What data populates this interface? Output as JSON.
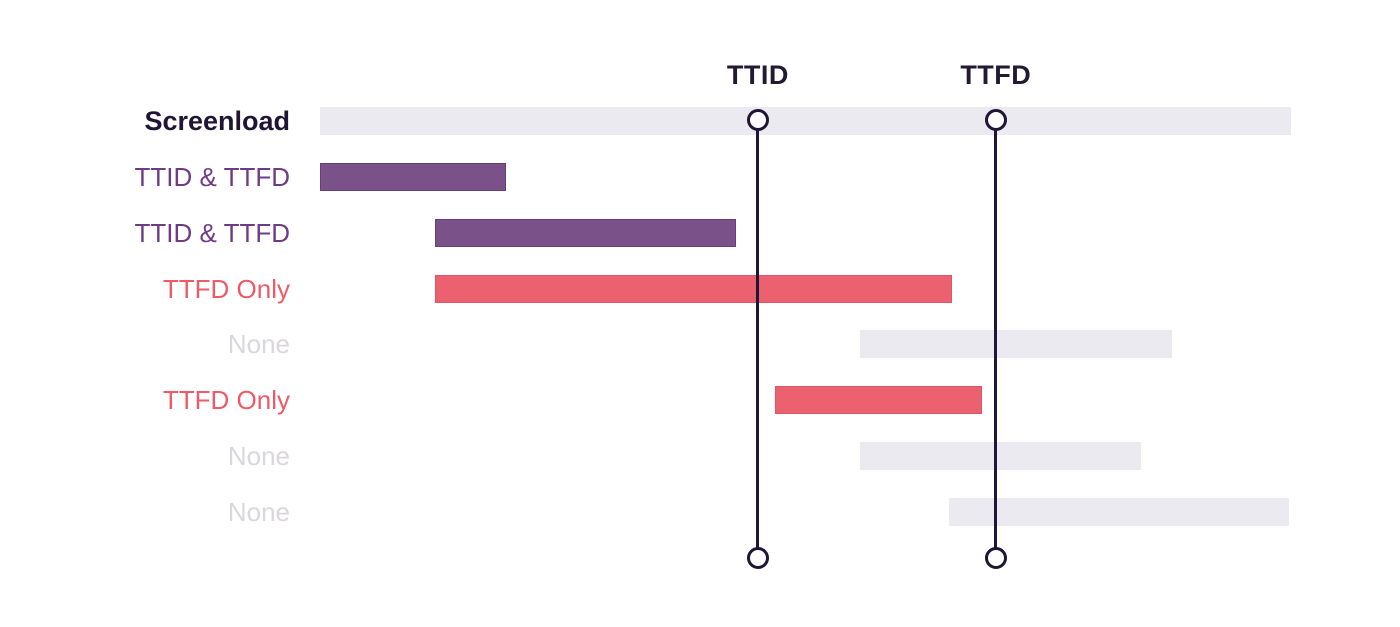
{
  "chart_data": {
    "type": "bar",
    "variant": "gantt-span",
    "orientation": "horizontal",
    "title": "",
    "xlabel": "",
    "ylabel": "",
    "grid": false,
    "legend_position": "none",
    "x_axis": {
      "min": 0,
      "max": 100,
      "unit": "percent of screenload span",
      "ticks_visible": false
    },
    "rows": [
      {
        "label": "Screenload",
        "category": "screenload",
        "start": 0,
        "end": 100
      },
      {
        "label": "TTID & TTFD",
        "category": "ttid_ttfd",
        "start": 0,
        "end": 19.2
      },
      {
        "label": "TTID & TTFD",
        "category": "ttid_ttfd",
        "start": 11.8,
        "end": 42.8
      },
      {
        "label": "TTFD Only",
        "category": "ttfd_only",
        "start": 11.8,
        "end": 65.1
      },
      {
        "label": "None",
        "category": "none",
        "start": 55.6,
        "end": 87.7
      },
      {
        "label": "TTFD Only",
        "category": "ttfd_only",
        "start": 46.9,
        "end": 68.2
      },
      {
        "label": "None",
        "category": "none",
        "start": 55.6,
        "end": 84.6
      },
      {
        "label": "None",
        "category": "none",
        "start": 64.8,
        "end": 99.8
      }
    ],
    "markers": [
      {
        "label": "TTID",
        "position": 45.1
      },
      {
        "label": "TTFD",
        "position": 69.6
      }
    ]
  },
  "colors": {
    "background": "#FFFFFF",
    "bar_fill": {
      "screenload": "#ECEAF1",
      "ttid_ttfd": "#7A5189",
      "ttfd_only": "#EB6170",
      "none": "#ECEAF1"
    },
    "bar_border": {
      "screenload": "#ECEAF1",
      "ttid_ttfd": "#66407A",
      "ttfd_only": "#DE5468",
      "none": "#ECEAF1"
    },
    "label_text": {
      "screenload": "#211533",
      "ttid_ttfd": "#6E3C87",
      "ttfd_only": "#EE5A67",
      "none": "#D9D6DE"
    },
    "marker_line": "#1F1633",
    "marker_label": "#221A35",
    "marker_dot_fill": "#FFFFFF"
  }
}
